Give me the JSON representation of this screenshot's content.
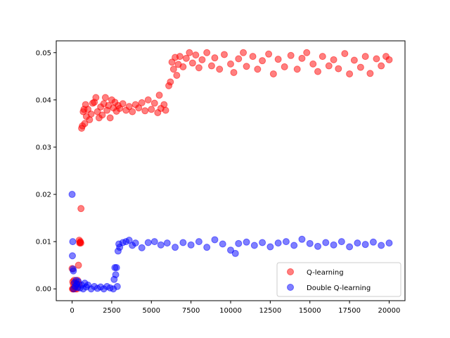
{
  "chart_data": {
    "type": "scatter",
    "title": "",
    "xlabel": "",
    "ylabel": "",
    "xlim": [
      -1000,
      21000
    ],
    "ylim": [
      -0.0025,
      0.0525
    ],
    "x_ticks": [
      0,
      2500,
      5000,
      7500,
      10000,
      12500,
      15000,
      17500,
      20000
    ],
    "x_tick_labels": [
      "0",
      "2500",
      "5000",
      "7500",
      "10000",
      "12500",
      "15000",
      "17500",
      "20000"
    ],
    "y_ticks": [
      0.0,
      0.01,
      0.02,
      0.03,
      0.04,
      0.05
    ],
    "y_tick_labels": [
      "0.00",
      "0.01",
      "0.02",
      "0.03",
      "0.04",
      "0.05"
    ],
    "legend_position": "lower-right",
    "series": [
      {
        "name": "Q-learning",
        "color": "#ff0000",
        "note": "dense scatter; values approximate plateau levels read from the figure",
        "points": [
          [
            0,
            0.0043
          ],
          [
            20,
            0.0
          ],
          [
            40,
            0.0015
          ],
          [
            60,
            0.0
          ],
          [
            80,
            0.001
          ],
          [
            100,
            0.0
          ],
          [
            120,
            0.0018
          ],
          [
            150,
            0.0005
          ],
          [
            200,
            0.0
          ],
          [
            250,
            0.0012
          ],
          [
            300,
            0.0
          ],
          [
            350,
            0.0018
          ],
          [
            400,
            0.005
          ],
          [
            420,
            0.001
          ],
          [
            450,
            0.0103
          ],
          [
            480,
            0.0097
          ],
          [
            500,
            0.0098
          ],
          [
            520,
            0.01
          ],
          [
            550,
            0.0097
          ],
          [
            560,
            0.017
          ],
          [
            600,
            0.034
          ],
          [
            650,
            0.0345
          ],
          [
            700,
            0.0375
          ],
          [
            750,
            0.038
          ],
          [
            800,
            0.035
          ],
          [
            850,
            0.039
          ],
          [
            900,
            0.0365
          ],
          [
            1000,
            0.038
          ],
          [
            1100,
            0.0358
          ],
          [
            1200,
            0.037
          ],
          [
            1300,
            0.0393
          ],
          [
            1400,
            0.0395
          ],
          [
            1500,
            0.0405
          ],
          [
            1600,
            0.0375
          ],
          [
            1700,
            0.0362
          ],
          [
            1800,
            0.0385
          ],
          [
            1900,
            0.0368
          ],
          [
            2000,
            0.0392
          ],
          [
            2100,
            0.0405
          ],
          [
            2200,
            0.0378
          ],
          [
            2300,
            0.0388
          ],
          [
            2400,
            0.0362
          ],
          [
            2500,
            0.04
          ],
          [
            2600,
            0.0383
          ],
          [
            2700,
            0.0395
          ],
          [
            2800,
            0.0376
          ],
          [
            2900,
            0.0388
          ],
          [
            3000,
            0.0382
          ],
          [
            3200,
            0.0392
          ],
          [
            3400,
            0.0378
          ],
          [
            3600,
            0.0386
          ],
          [
            3800,
            0.0375
          ],
          [
            4000,
            0.039
          ],
          [
            4200,
            0.0383
          ],
          [
            4400,
            0.0394
          ],
          [
            4600,
            0.0377
          ],
          [
            4800,
            0.04
          ],
          [
            5000,
            0.038
          ],
          [
            5200,
            0.0393
          ],
          [
            5400,
            0.0373
          ],
          [
            5500,
            0.041
          ],
          [
            5600,
            0.0382
          ],
          [
            5800,
            0.039
          ],
          [
            5900,
            0.0378
          ],
          [
            6100,
            0.043
          ],
          [
            6200,
            0.0438
          ],
          [
            6300,
            0.048
          ],
          [
            6400,
            0.0465
          ],
          [
            6500,
            0.049
          ],
          [
            6600,
            0.0452
          ],
          [
            6700,
            0.0475
          ],
          [
            6800,
            0.0492
          ],
          [
            7000,
            0.047
          ],
          [
            7200,
            0.0488
          ],
          [
            7400,
            0.05
          ],
          [
            7600,
            0.0478
          ],
          [
            7800,
            0.0495
          ],
          [
            8000,
            0.0468
          ],
          [
            8200,
            0.0485
          ],
          [
            8500,
            0.05
          ],
          [
            8800,
            0.0472
          ],
          [
            9000,
            0.0489
          ],
          [
            9300,
            0.0465
          ],
          [
            9600,
            0.0496
          ],
          [
            10000,
            0.0476
          ],
          [
            10200,
            0.0458
          ],
          [
            10500,
            0.0487
          ],
          [
            10800,
            0.05
          ],
          [
            11000,
            0.0471
          ],
          [
            11400,
            0.0492
          ],
          [
            11700,
            0.0465
          ],
          [
            12000,
            0.0483
          ],
          [
            12400,
            0.0497
          ],
          [
            12700,
            0.0455
          ],
          [
            13000,
            0.0486
          ],
          [
            13400,
            0.047
          ],
          [
            13800,
            0.0494
          ],
          [
            14200,
            0.0465
          ],
          [
            14500,
            0.0488
          ],
          [
            14800,
            0.05
          ],
          [
            15200,
            0.0476
          ],
          [
            15500,
            0.046
          ],
          [
            15800,
            0.0492
          ],
          [
            16200,
            0.0472
          ],
          [
            16500,
            0.0485
          ],
          [
            16800,
            0.0466
          ],
          [
            17200,
            0.0498
          ],
          [
            17500,
            0.0455
          ],
          [
            17800,
            0.0484
          ],
          [
            18200,
            0.0469
          ],
          [
            18500,
            0.0492
          ],
          [
            18800,
            0.0456
          ],
          [
            19200,
            0.0487
          ],
          [
            19500,
            0.0472
          ],
          [
            19800,
            0.0492
          ],
          [
            20000,
            0.0485
          ]
        ]
      },
      {
        "name": "Double Q-learning",
        "color": "#0000ff",
        "note": "dense scatter; values approximate plateau levels read from the figure",
        "points": [
          [
            0,
            0.02
          ],
          [
            20,
            0.007
          ],
          [
            40,
            0.01
          ],
          [
            60,
            0.0042
          ],
          [
            80,
            0.0038
          ],
          [
            100,
            0.0
          ],
          [
            150,
            0.0013
          ],
          [
            200,
            0.0005
          ],
          [
            250,
            0.0018
          ],
          [
            300,
            0.001
          ],
          [
            350,
            0.0003
          ],
          [
            400,
            0.0015
          ],
          [
            500,
            0.0002
          ],
          [
            600,
            0.0008
          ],
          [
            700,
            0.0
          ],
          [
            800,
            0.0012
          ],
          [
            900,
            0.0004
          ],
          [
            1000,
            0.0008
          ],
          [
            1200,
            0.0
          ],
          [
            1400,
            0.0005
          ],
          [
            1600,
            0.0001
          ],
          [
            1800,
            0.0004
          ],
          [
            2000,
            0.0
          ],
          [
            2200,
            0.0005
          ],
          [
            2400,
            0.0002
          ],
          [
            2600,
            0.0
          ],
          [
            2650,
            0.002
          ],
          [
            2700,
            0.0045
          ],
          [
            2750,
            0.003
          ],
          [
            2800,
            0.0045
          ],
          [
            2850,
            0.0005
          ],
          [
            2900,
            0.008
          ],
          [
            2950,
            0.0095
          ],
          [
            3000,
            0.0088
          ],
          [
            3200,
            0.0098
          ],
          [
            3400,
            0.01
          ],
          [
            3600,
            0.0103
          ],
          [
            3800,
            0.0092
          ],
          [
            4000,
            0.0097
          ],
          [
            4400,
            0.0087
          ],
          [
            4800,
            0.0098
          ],
          [
            5200,
            0.01
          ],
          [
            5600,
            0.0093
          ],
          [
            6000,
            0.0097
          ],
          [
            6500,
            0.0088
          ],
          [
            7000,
            0.0098
          ],
          [
            7500,
            0.0093
          ],
          [
            8000,
            0.01
          ],
          [
            8500,
            0.0088
          ],
          [
            9000,
            0.0104
          ],
          [
            9500,
            0.0095
          ],
          [
            10000,
            0.0082
          ],
          [
            10300,
            0.0075
          ],
          [
            10500,
            0.0096
          ],
          [
            11000,
            0.0099
          ],
          [
            11500,
            0.0092
          ],
          [
            12000,
            0.0098
          ],
          [
            12500,
            0.0089
          ],
          [
            13000,
            0.0097
          ],
          [
            13500,
            0.01
          ],
          [
            14000,
            0.0092
          ],
          [
            14500,
            0.0105
          ],
          [
            15000,
            0.0096
          ],
          [
            15500,
            0.009
          ],
          [
            16000,
            0.0098
          ],
          [
            16500,
            0.0093
          ],
          [
            17000,
            0.01
          ],
          [
            17500,
            0.0089
          ],
          [
            18000,
            0.0097
          ],
          [
            18500,
            0.0094
          ],
          [
            19000,
            0.0099
          ],
          [
            19500,
            0.0092
          ],
          [
            20000,
            0.0097
          ]
        ]
      }
    ]
  }
}
